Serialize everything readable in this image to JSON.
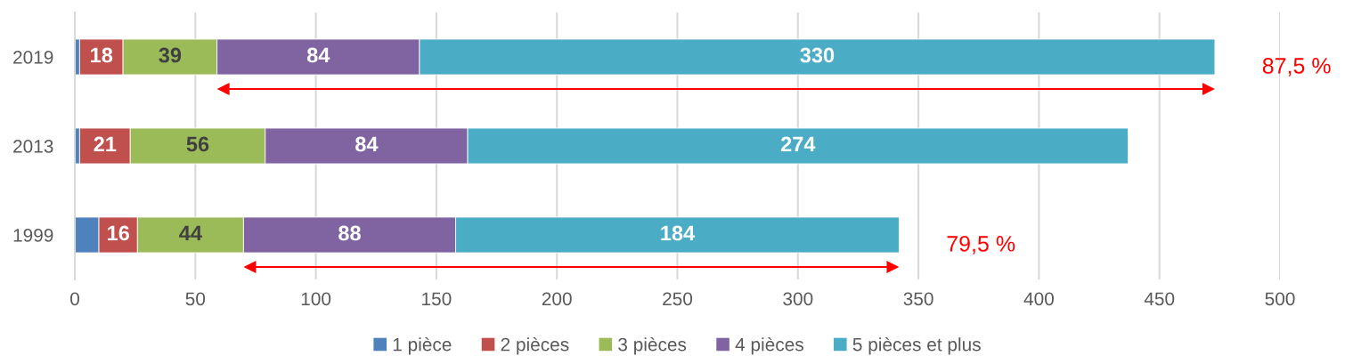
{
  "chart_data": {
    "type": "bar",
    "orientation": "horizontal",
    "stacked": true,
    "categories": [
      "2019",
      "2013",
      "1999"
    ],
    "series": [
      {
        "name": "1 pièce",
        "color": "#4f81bd",
        "values": [
          2,
          2,
          10
        ]
      },
      {
        "name": "2 pièces",
        "color": "#c0504d",
        "values": [
          18,
          21,
          16
        ],
        "value_labels": [
          "18",
          "21",
          "16"
        ]
      },
      {
        "name": "3 pièces",
        "color": "#9bbb59",
        "values": [
          39,
          56,
          44
        ],
        "value_labels": [
          "39",
          "56",
          "44"
        ]
      },
      {
        "name": "4 pièces",
        "color": "#8064a2",
        "values": [
          84,
          84,
          88
        ],
        "value_labels": [
          "84",
          "84",
          "88"
        ]
      },
      {
        "name": "5 pièces et plus",
        "color": "#4bacc6",
        "values": [
          330,
          274,
          184
        ],
        "value_labels": [
          "330",
          "274",
          "184"
        ]
      }
    ],
    "xlim": [
      0,
      500
    ],
    "xticks": [
      0,
      50,
      100,
      150,
      200,
      250,
      300,
      350,
      400,
      450,
      500
    ],
    "grid": "x",
    "legend": "bottom",
    "annotations": [
      {
        "text": "87,5 %",
        "x": 473,
        "y": "2019"
      },
      {
        "text": "79,5 %",
        "x": 342,
        "y": "1999"
      }
    ]
  }
}
